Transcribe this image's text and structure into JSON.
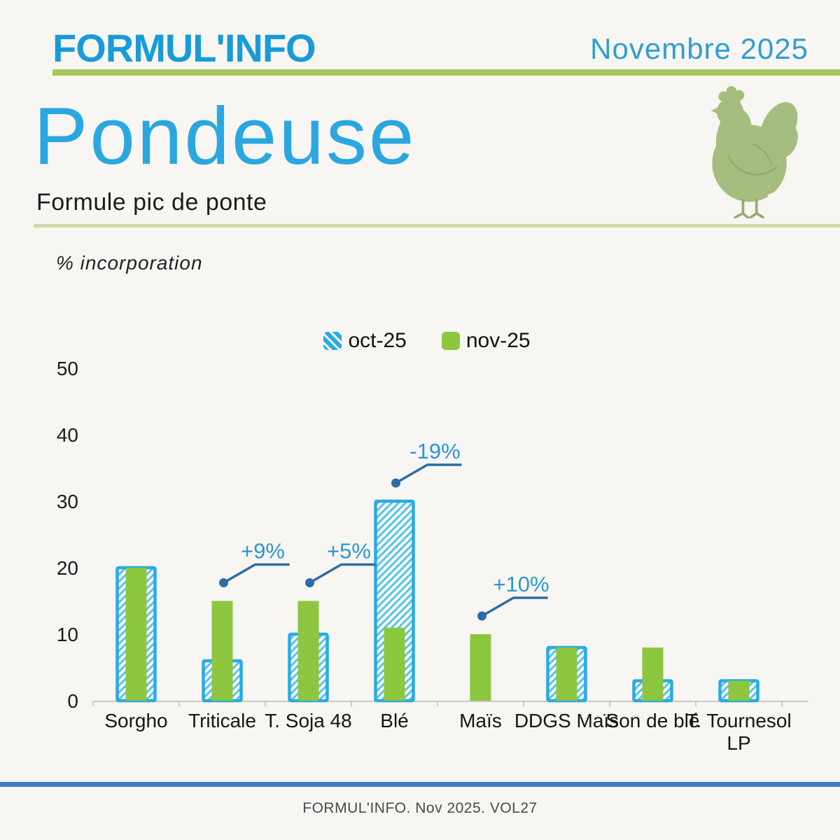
{
  "header": {
    "brand": "FORMUL'INFO",
    "issue_date": "Novembre 2025"
  },
  "hero": {
    "title": "Pondeuse",
    "subtitle": "Formule pic de ponte",
    "mascot": "hen-illustration"
  },
  "chart_data": {
    "type": "bar",
    "title": "",
    "ylabel": "% incorporation",
    "xlabel": "",
    "categories": [
      "Sorgho",
      "Triticale",
      "T. Soja 48",
      "Blé",
      "Maïs",
      "DDGS Maïs",
      "Son de blé",
      "T. Tournesol\nLP"
    ],
    "series": [
      {
        "name": "oct-25",
        "style": "hatched",
        "color": "#29abe2",
        "values": [
          20,
          6,
          10,
          30,
          0,
          8,
          3,
          3
        ]
      },
      {
        "name": "nov-25",
        "style": "solid",
        "color": "#8dc63f",
        "values": [
          20,
          15,
          15,
          11,
          10,
          8,
          8,
          3
        ]
      }
    ],
    "annotations": [
      {
        "category": "Triticale",
        "label": "+9%"
      },
      {
        "category": "T. Soja 48",
        "label": "+5%"
      },
      {
        "category": "Blé",
        "label": "-19%"
      },
      {
        "category": "Maïs",
        "label": "+10%"
      }
    ],
    "ylim": [
      0,
      50
    ],
    "yticks": [
      0,
      10,
      20,
      30,
      40,
      50
    ],
    "grid": false,
    "legend_position": "top-center"
  },
  "footer": {
    "note": "FORMUL'INFO. Nov 2025. VOL27"
  },
  "colors": {
    "bar_oct_blue": "#29abe2",
    "hatch_stripe_blue": "#55c3ec",
    "bar_nov_green": "#8dc63f",
    "annotation_text_blue": "#2a97d3",
    "annotation_line_blue": "#2d6da6",
    "brand_blue": "#189bd7",
    "title_blue": "#2aa7e0",
    "issue_blue": "#2e9fd4",
    "rule_green": "#a5c857",
    "rule_pale_green": "#cdd9a4",
    "footer_rule_blue": "#3d7dc0",
    "hen_green": "#a6bd80",
    "axis_gray": "#c9c9c4",
    "tick_text": "#1b1b1b"
  }
}
